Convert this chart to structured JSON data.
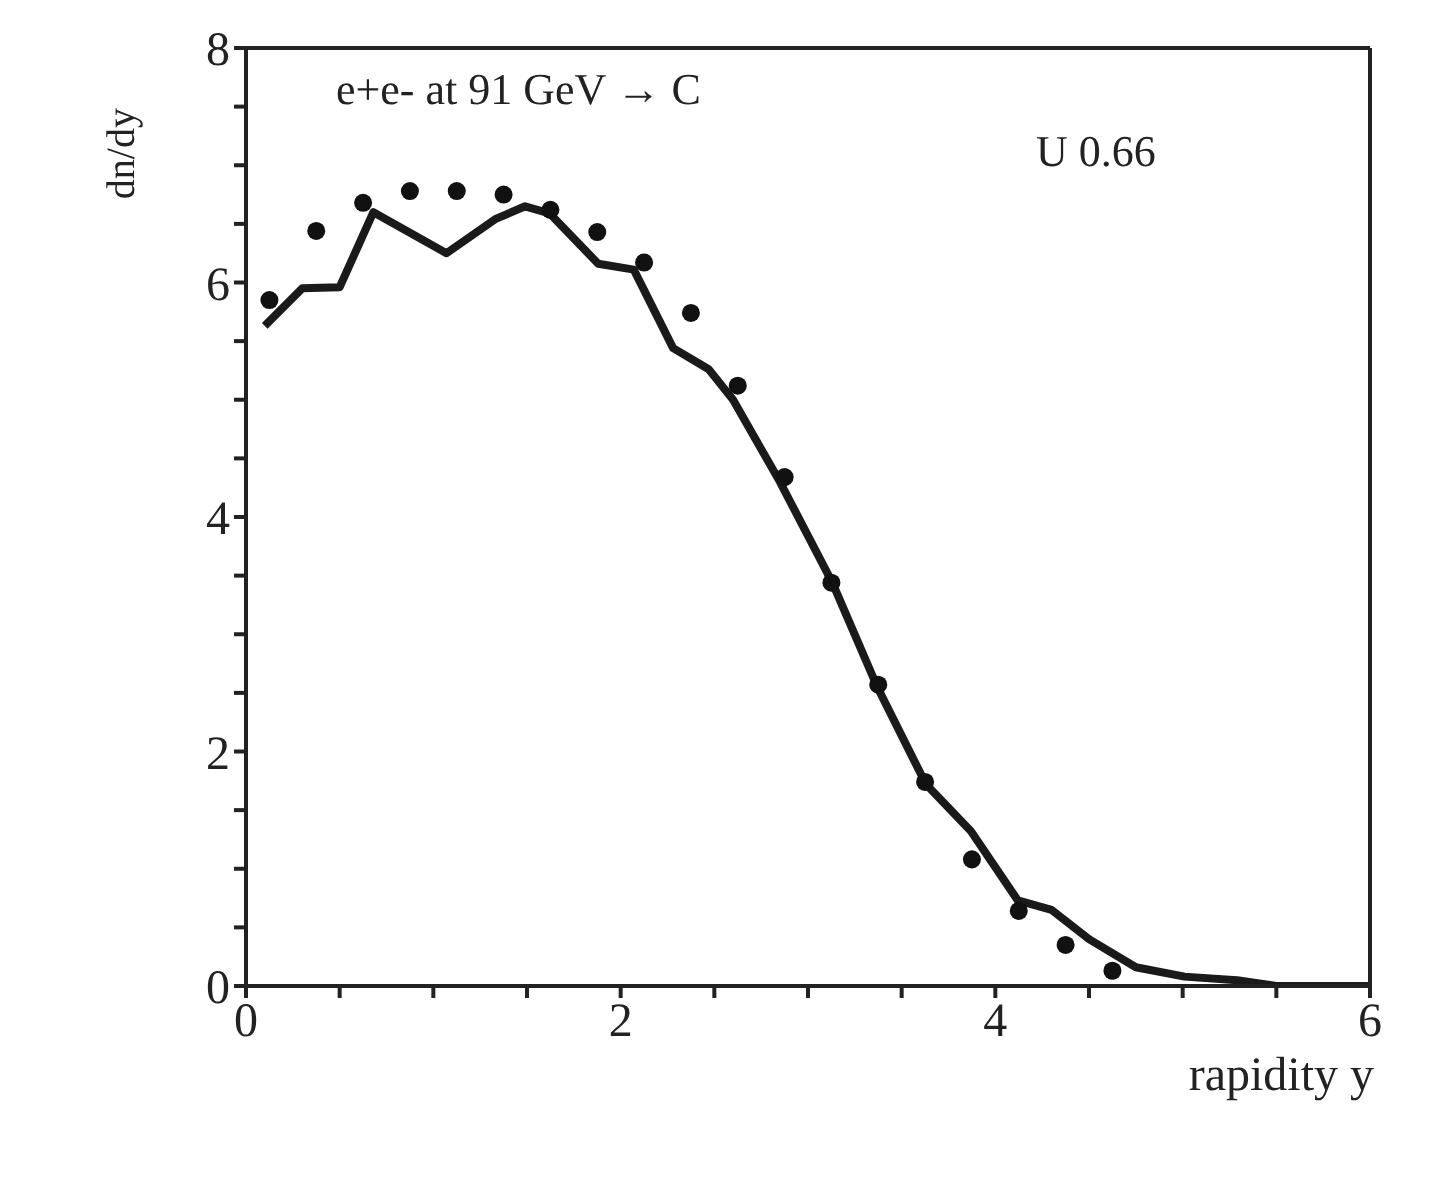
{
  "chart_data": {
    "type": "scatter",
    "xlabel": "rapidity y",
    "ylabel": "dn/dy",
    "annotations": [
      "e+e- at 91 GeV → C",
      "U 0.66"
    ],
    "xlim": [
      0,
      6
    ],
    "ylim": [
      0,
      8
    ],
    "xticks": [
      0,
      {
        "value": 0.5,
        "label": null
      },
      {
        "value": 1,
        "label": null
      },
      {
        "value": 1.5,
        "label": null
      },
      2,
      {
        "value": 2.5,
        "label": null
      },
      {
        "value": 3,
        "label": null
      },
      {
        "value": 3.5,
        "label": null
      },
      4,
      {
        "value": 4.5,
        "label": null
      },
      {
        "value": 5,
        "label": null
      },
      {
        "value": 5.5,
        "label": null
      },
      6
    ],
    "yticks": [
      0,
      {
        "value": 0.5,
        "label": null
      },
      {
        "value": 1,
        "label": null
      },
      {
        "value": 1.5,
        "label": null
      },
      2,
      {
        "value": 2.5,
        "label": null
      },
      {
        "value": 3,
        "label": null
      },
      {
        "value": 3.5,
        "label": null
      },
      4,
      {
        "value": 4.5,
        "label": null
      },
      {
        "value": 5,
        "label": null
      },
      {
        "value": 5.5,
        "label": null
      },
      6,
      {
        "value": 6.5,
        "label": null
      },
      {
        "value": 7,
        "label": null
      },
      {
        "value": 7.5,
        "label": null
      },
      8
    ],
    "grid": false,
    "legend": false,
    "series": [
      {
        "color": "#111111",
        "marker": "circle",
        "x": [
          0.125,
          0.375,
          0.625,
          0.875,
          1.125,
          1.375,
          1.625,
          1.875,
          2.125,
          2.375,
          2.625,
          2.875,
          3.125,
          3.375,
          3.625,
          3.875,
          4.125,
          4.375,
          4.625
        ],
        "values": [
          5.85,
          6.44,
          6.68,
          6.78,
          6.78,
          6.75,
          6.62,
          6.43,
          6.17,
          5.74,
          5.12,
          4.34,
          3.44,
          2.57,
          1.74,
          1.08,
          0.64,
          0.35,
          0.13
        ]
      },
      {
        "type": "line",
        "color": "#1a1a1a",
        "marker": "none",
        "line_style": "solid",
        "x": [
          0.1,
          0.3,
          0.5,
          0.68,
          1.07,
          1.33,
          1.49,
          1.62,
          1.88,
          2.07,
          2.28,
          2.47,
          2.6,
          2.85,
          3.13,
          3.37,
          3.63,
          3.87,
          4.12,
          4.3,
          4.5,
          4.75,
          5.01,
          5.29,
          5.5,
          6
        ],
        "values": [
          5.63,
          5.95,
          5.96,
          6.6,
          6.25,
          6.54,
          6.65,
          6.59,
          6.16,
          6.11,
          5.44,
          5.26,
          5.0,
          4.3,
          3.44,
          2.55,
          1.72,
          1.32,
          0.73,
          0.65,
          0.4,
          0.16,
          0.08,
          0.05,
          0,
          0
        ]
      }
    ]
  }
}
